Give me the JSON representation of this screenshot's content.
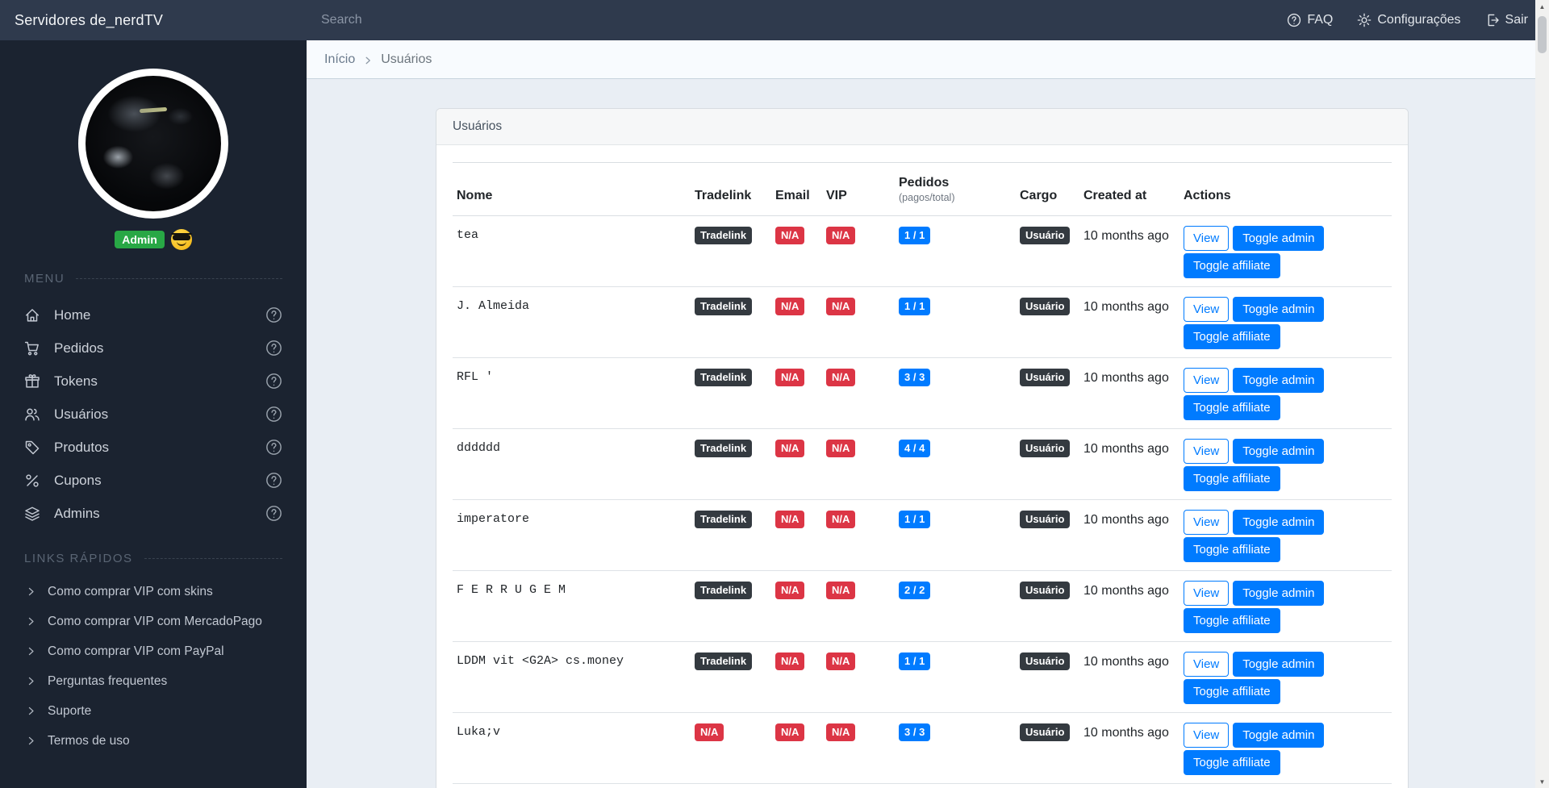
{
  "navbar": {
    "brand": "Servidores de_nerdTV",
    "search_placeholder": "Search",
    "links": [
      {
        "name": "faq-nav-link",
        "icon": "question-circle-icon",
        "label": "FAQ"
      },
      {
        "name": "settings-nav-link",
        "icon": "gear-icon",
        "label": "Configurações"
      },
      {
        "name": "logout-nav-link",
        "icon": "logout-icon",
        "label": "Sair"
      }
    ]
  },
  "sidebar": {
    "badge": "Admin",
    "badge_emoji": "sunglasses-emoji",
    "menu_heading": "MENU",
    "menu": [
      {
        "label": "Home",
        "icon": "home-icon"
      },
      {
        "label": "Pedidos",
        "icon": "cart-icon"
      },
      {
        "label": "Tokens",
        "icon": "gift-icon"
      },
      {
        "label": "Usuários",
        "icon": "users-icon"
      },
      {
        "label": "Produtos",
        "icon": "tag-icon"
      },
      {
        "label": "Cupons",
        "icon": "percent-icon"
      },
      {
        "label": "Admins",
        "icon": "layers-icon"
      }
    ],
    "quick_links_heading": "LINKS RÁPIDOS",
    "quick_links": [
      "Como comprar VIP com skins",
      "Como comprar VIP com MercadoPago",
      "Como comprar VIP com PayPal",
      "Perguntas frequentes",
      "Suporte",
      "Termos de uso"
    ]
  },
  "breadcrumb": {
    "items": [
      "Início",
      "Usuários"
    ]
  },
  "card": {
    "title": "Usuários",
    "table": {
      "headers": {
        "nome": "Nome",
        "tradelink": "Tradelink",
        "email": "Email",
        "vip": "VIP",
        "pedidos": "Pedidos",
        "pedidos_sub": "(pagos/total)",
        "cargo": "Cargo",
        "created": "Created at",
        "actions": "Actions"
      },
      "rows": [
        {
          "nome": "tea",
          "tradelink": "Tradelink",
          "tradelink_variant": "dark",
          "email": "N/A",
          "vip": "N/A",
          "pedidos": "1 / 1",
          "cargo": "Usuário",
          "created": "10 months ago",
          "actions": [
            "View",
            "Toggle admin",
            "Toggle affiliate"
          ]
        },
        {
          "nome": "J. Almeida",
          "tradelink": "Tradelink",
          "tradelink_variant": "dark",
          "email": "N/A",
          "vip": "N/A",
          "pedidos": "1 / 1",
          "cargo": "Usuário",
          "created": "10 months ago",
          "actions": [
            "View",
            "Toggle admin",
            "Toggle affiliate"
          ]
        },
        {
          "nome": "RFL '",
          "tradelink": "Tradelink",
          "tradelink_variant": "dark",
          "email": "N/A",
          "vip": "N/A",
          "pedidos": "3 / 3",
          "cargo": "Usuário",
          "created": "10 months ago",
          "actions": [
            "View",
            "Toggle admin",
            "Toggle affiliate"
          ]
        },
        {
          "nome": "dddddd",
          "tradelink": "Tradelink",
          "tradelink_variant": "dark",
          "email": "N/A",
          "vip": "N/A",
          "pedidos": "4 / 4",
          "cargo": "Usuário",
          "created": "10 months ago",
          "actions": [
            "View",
            "Toggle admin",
            "Toggle affiliate"
          ]
        },
        {
          "nome": "imperatore",
          "tradelink": "Tradelink",
          "tradelink_variant": "dark",
          "email": "N/A",
          "vip": "N/A",
          "pedidos": "1 / 1",
          "cargo": "Usuário",
          "created": "10 months ago",
          "actions": [
            "View",
            "Toggle admin",
            "Toggle affiliate"
          ]
        },
        {
          "nome": "F E R R U G E M",
          "tradelink": "Tradelink",
          "tradelink_variant": "dark",
          "email": "N/A",
          "vip": "N/A",
          "pedidos": "2 / 2",
          "cargo": "Usuário",
          "created": "10 months ago",
          "actions": [
            "View",
            "Toggle admin",
            "Toggle affiliate"
          ]
        },
        {
          "nome": "LDDM vit <G2A> cs.money",
          "tradelink": "Tradelink",
          "tradelink_variant": "dark",
          "email": "N/A",
          "vip": "N/A",
          "pedidos": "1 / 1",
          "cargo": "Usuário",
          "created": "10 months ago",
          "actions": [
            "View",
            "Toggle admin",
            "Toggle affiliate"
          ]
        },
        {
          "nome": "Luka;v",
          "tradelink": "N/A",
          "tradelink_variant": "danger",
          "email": "N/A",
          "vip": "N/A",
          "pedidos": "3 / 3",
          "cargo": "Usuário",
          "created": "10 months ago",
          "actions": [
            "View",
            "Toggle admin",
            "Toggle affiliate"
          ]
        }
      ]
    }
  },
  "scrollbar": {
    "up": "▲",
    "down": "▼"
  },
  "colors": {
    "primary": "#007bff",
    "danger": "#dc3545",
    "success": "#28a745",
    "dark_badge": "#343a40",
    "navbar_bg": "#2f3a4d",
    "sidebar_bg": "#1b2330"
  }
}
